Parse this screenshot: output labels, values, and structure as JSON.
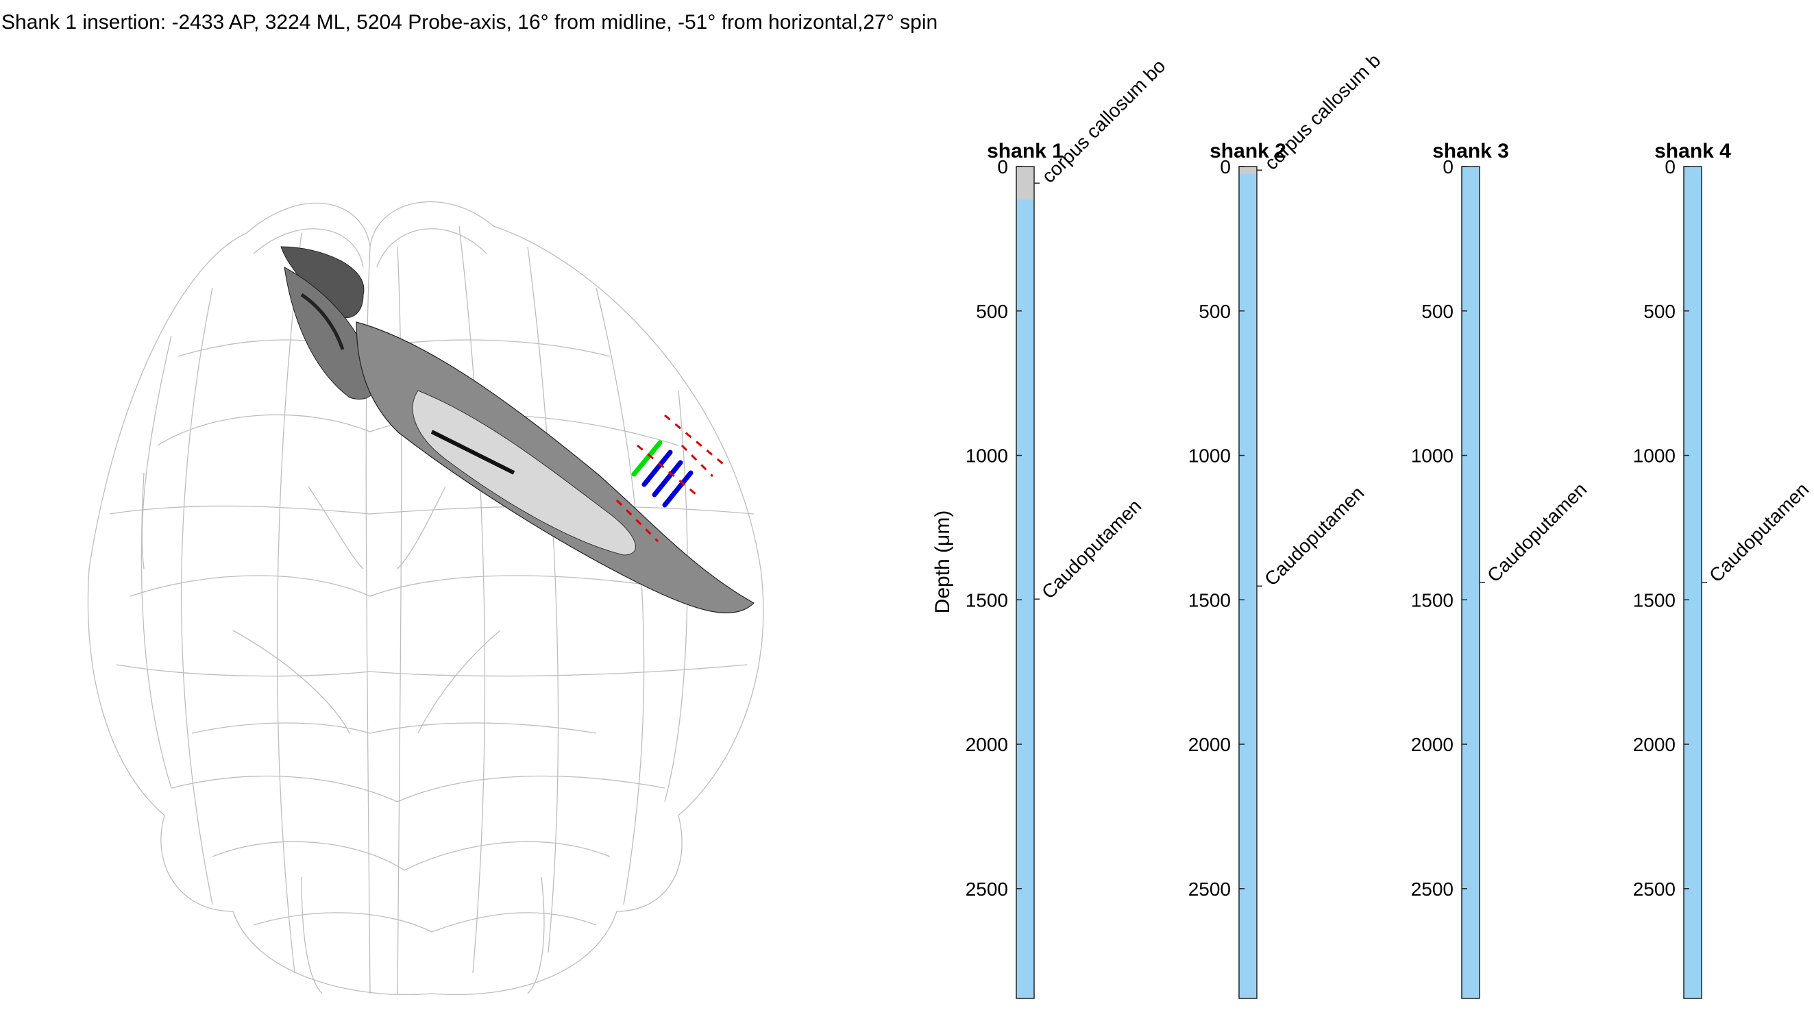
{
  "title": "Shank 1 insertion: -2433 AP, 3224 ML, 5204 Probe-axis, 16° from midline, -51° from horizontal,27° spin",
  "colors": {
    "region_caudoputamen": "#9ad2f4",
    "region_corpus_callosum": "#cccccc",
    "probe_active": "#00e000",
    "probe_shank": "#0000dd",
    "probe_boundary": "#dd0000",
    "brain_mesh": "#bdbdbd"
  },
  "chart_data": [
    {
      "type": "bar",
      "title": "shank 1",
      "ylabel": "Depth (μm)",
      "ylim": [
        0,
        2880
      ],
      "y_reversed": true,
      "yticks": [
        0,
        500,
        1000,
        1500,
        2000,
        2500
      ],
      "segments": [
        {
          "region": "corpus callosum body",
          "label": "corpus callosum bo",
          "start": 0,
          "end": 115,
          "color": "#cccccc"
        },
        {
          "region": "Caudoputamen",
          "label": "Caudoputamen",
          "start": 115,
          "end": 2880,
          "color": "#9ad2f4"
        }
      ]
    },
    {
      "type": "bar",
      "title": "shank 2",
      "ylim": [
        0,
        2880
      ],
      "y_reversed": true,
      "yticks": [
        0,
        500,
        1000,
        1500,
        2000,
        2500
      ],
      "segments": [
        {
          "region": "corpus callosum body",
          "label": "corpus callosum b",
          "start": 0,
          "end": 25,
          "color": "#cccccc"
        },
        {
          "region": "Caudoputamen",
          "label": "Caudoputamen",
          "start": 25,
          "end": 2880,
          "color": "#9ad2f4"
        }
      ]
    },
    {
      "type": "bar",
      "title": "shank 3",
      "ylim": [
        0,
        2880
      ],
      "y_reversed": true,
      "yticks": [
        0,
        500,
        1000,
        1500,
        2000,
        2500
      ],
      "segments": [
        {
          "region": "Caudoputamen",
          "label": "Caudoputamen",
          "start": 0,
          "end": 2880,
          "color": "#9ad2f4"
        }
      ]
    },
    {
      "type": "bar",
      "title": "shank 4",
      "ylim": [
        0,
        2880
      ],
      "y_reversed": true,
      "yticks": [
        0,
        500,
        1000,
        1500,
        2000,
        2500
      ],
      "segments": [
        {
          "region": "Caudoputamen",
          "label": "Caudoputamen",
          "start": 0,
          "end": 2880,
          "color": "#9ad2f4"
        }
      ]
    }
  ]
}
